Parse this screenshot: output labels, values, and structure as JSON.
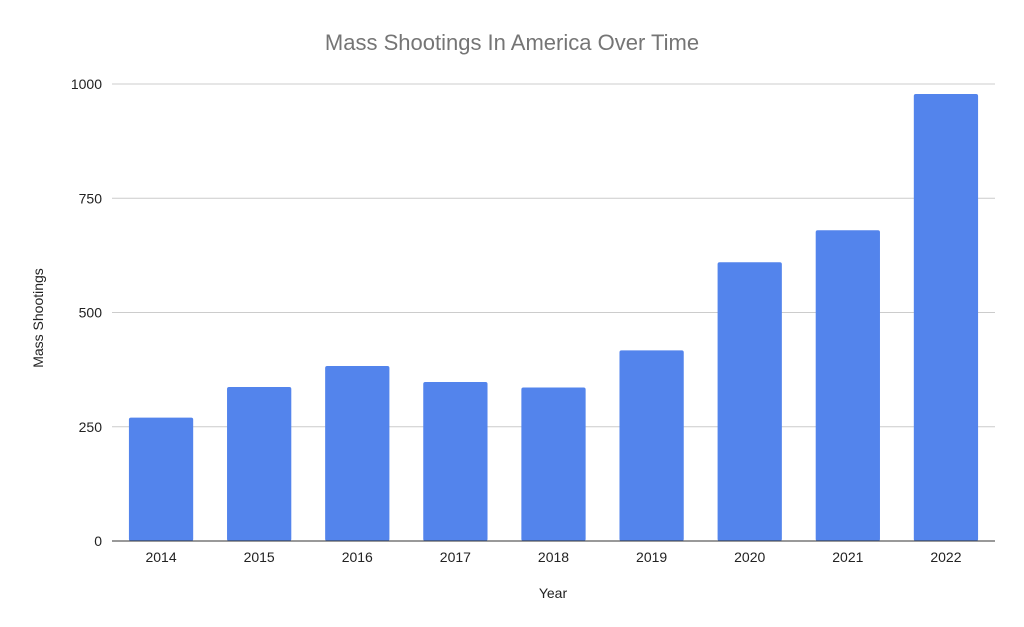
{
  "chart_data": {
    "type": "bar",
    "title": "Mass Shootings In America Over Time",
    "xlabel": "Year",
    "ylabel": "Mass Shootings",
    "categories": [
      "2014",
      "2015",
      "2016",
      "2017",
      "2018",
      "2019",
      "2020",
      "2021",
      "2022"
    ],
    "values": [
      270,
      337,
      383,
      348,
      336,
      417,
      610,
      680,
      978
    ],
    "ylim": [
      0,
      1000
    ],
    "yticks": [
      0,
      250,
      500,
      750,
      1000
    ],
    "grid": true,
    "legend": "none",
    "colors": {
      "bar": "#5384EC",
      "grid": "#CCCCCC",
      "axis": "#333333",
      "title": "#757575",
      "text": "#222222"
    }
  }
}
